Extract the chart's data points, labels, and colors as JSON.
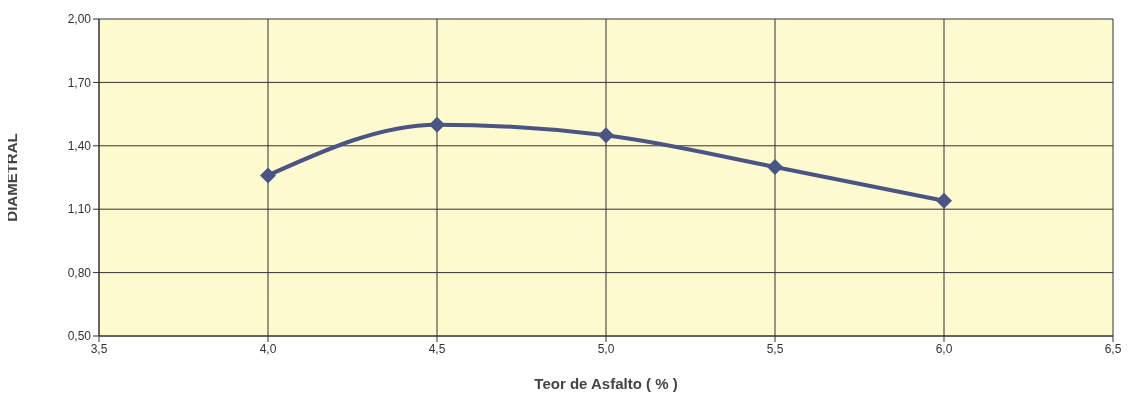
{
  "chart_data": {
    "type": "line",
    "xlabel": "Teor de Asfalto ( % )",
    "ylabel": "DIAMETRAL",
    "x": [
      4.0,
      4.5,
      5.0,
      5.5,
      6.0
    ],
    "series": [
      {
        "color": "#4a5585",
        "values": [
          1.26,
          1.5,
          1.45,
          1.3,
          1.14
        ]
      }
    ],
    "xlim": [
      3.5,
      6.5
    ],
    "xticks": [
      {
        "value": 3.5,
        "label": "3,5"
      },
      {
        "value": 4.0,
        "label": "4,0"
      },
      {
        "value": 4.5,
        "label": "4,5"
      },
      {
        "value": 5.0,
        "label": "5,0"
      },
      {
        "value": 5.5,
        "label": "5,5"
      },
      {
        "value": 6.0,
        "label": "6,0"
      },
      {
        "value": 6.5,
        "label": "6,5"
      }
    ],
    "ylim": [
      0.5,
      2.0
    ],
    "yticks": [
      {
        "value": 0.5,
        "label": "0,50"
      },
      {
        "value": 0.8,
        "label": "0,80"
      },
      {
        "value": 1.1,
        "label": "1,10"
      },
      {
        "value": 1.4,
        "label": "1,40"
      },
      {
        "value": 1.7,
        "label": "1,70"
      },
      {
        "value": 2.0,
        "label": "2,00"
      }
    ],
    "grid": true,
    "marker": "diamond",
    "line_style": "solid"
  }
}
